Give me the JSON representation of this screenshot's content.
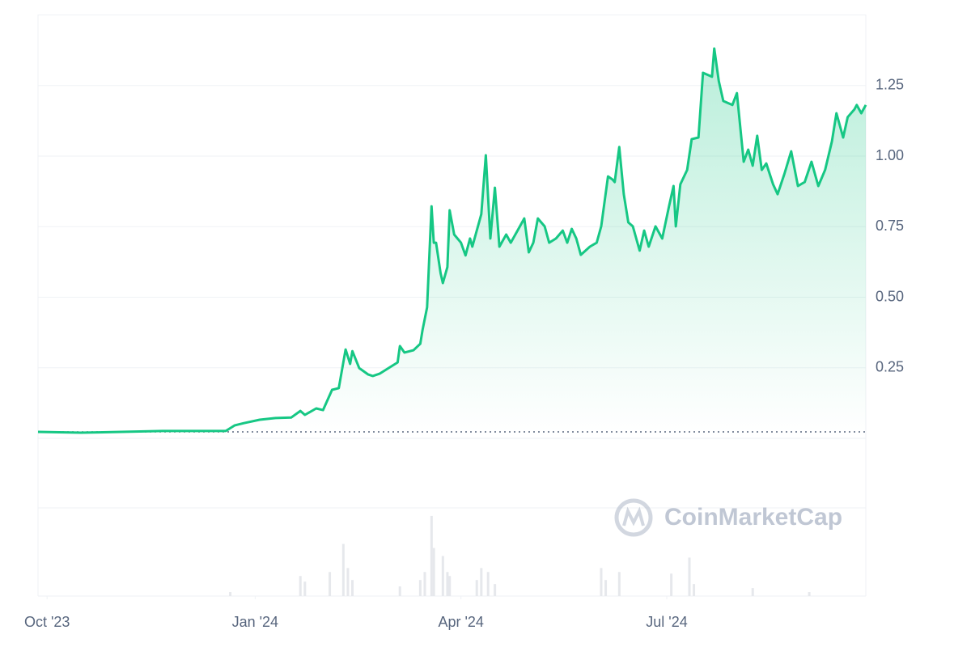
{
  "chart_data": {
    "type": "line",
    "watermark": "CoinMarketCap",
    "xlim": [
      0,
      366
    ],
    "xticks": [
      {
        "value": 4,
        "label": "Oct '23"
      },
      {
        "value": 96,
        "label": "Jan '24"
      },
      {
        "value": 187,
        "label": "Apr '24"
      },
      {
        "value": 278,
        "label": "Jul '24"
      }
    ],
    "ylim": [
      0,
      1.5
    ],
    "yticks": [
      {
        "value": 0.25,
        "label": "0.25"
      },
      {
        "value": 0.5,
        "label": "0.50"
      },
      {
        "value": 0.75,
        "label": "0.75"
      },
      {
        "value": 1,
        "label": "1.00"
      },
      {
        "value": 1.25,
        "label": "1.25"
      }
    ],
    "grid": true,
    "baseline": 0.023,
    "series": [
      {
        "color": "#16c784",
        "x": [
          0,
          19,
          37,
          55,
          73,
          83,
          87,
          91,
          98,
          105,
          112,
          116,
          118,
          123,
          126,
          130,
          133,
          136,
          138,
          139,
          142,
          146,
          148,
          151,
          155,
          159,
          160,
          162,
          166,
          169,
          170,
          172,
          174,
          175,
          176,
          178,
          179,
          181,
          182,
          184,
          187,
          189,
          191,
          192,
          194,
          196,
          198,
          200,
          202,
          204,
          207,
          209,
          212,
          215,
          217,
          219,
          221,
          224,
          226,
          229,
          232,
          234,
          236,
          238,
          240,
          244,
          247,
          249,
          252,
          254,
          255,
          257,
          259,
          261,
          263,
          266,
          268,
          270,
          273,
          276,
          279,
          281,
          282,
          284,
          287,
          289,
          292,
          294,
          298,
          299,
          301,
          303,
          307,
          309,
          312,
          314,
          316,
          318,
          320,
          322,
          325,
          327,
          330,
          333,
          336,
          339,
          342,
          345,
          348,
          351,
          353,
          356,
          358,
          361,
          362,
          364,
          366
        ],
        "values": [
          0.023,
          0.02,
          0.023,
          0.026,
          0.026,
          0.026,
          0.046,
          0.054,
          0.066,
          0.072,
          0.074,
          0.097,
          0.083,
          0.106,
          0.1,
          0.172,
          0.178,
          0.315,
          0.264,
          0.309,
          0.249,
          0.226,
          0.221,
          0.229,
          0.249,
          0.269,
          0.327,
          0.304,
          0.312,
          0.335,
          0.384,
          0.464,
          0.822,
          0.693,
          0.693,
          0.585,
          0.55,
          0.607,
          0.808,
          0.722,
          0.693,
          0.648,
          0.708,
          0.679,
          0.736,
          0.794,
          1.003,
          0.708,
          0.888,
          0.679,
          0.722,
          0.693,
          0.736,
          0.779,
          0.659,
          0.693,
          0.779,
          0.751,
          0.693,
          0.708,
          0.736,
          0.693,
          0.742,
          0.708,
          0.65,
          0.679,
          0.693,
          0.751,
          0.928,
          0.917,
          0.908,
          1.032,
          0.865,
          0.765,
          0.751,
          0.665,
          0.736,
          0.679,
          0.751,
          0.708,
          0.822,
          0.894,
          0.751,
          0.9,
          0.951,
          1.06,
          1.066,
          1.295,
          1.281,
          1.381,
          1.266,
          1.195,
          1.181,
          1.223,
          0.98,
          1.023,
          0.966,
          1.072,
          0.951,
          0.974,
          0.9,
          0.865,
          0.937,
          1.017,
          0.894,
          0.908,
          0.98,
          0.894,
          0.951,
          1.052,
          1.152,
          1.066,
          1.138,
          1.166,
          1.181,
          1.152,
          1.181
        ]
      }
    ],
    "volume": {
      "color": "#e6e8ec",
      "ylim": [
        0,
        110
      ],
      "x": [
        85,
        116,
        118,
        129,
        135,
        137,
        139,
        160,
        169,
        171,
        174,
        175,
        179,
        181,
        182,
        194,
        196,
        199,
        202,
        249,
        251,
        257,
        280,
        288,
        290,
        316,
        341
      ],
      "values": [
        5,
        25,
        18,
        30,
        65,
        35,
        20,
        12,
        20,
        30,
        100,
        60,
        50,
        30,
        25,
        20,
        35,
        30,
        15,
        35,
        20,
        30,
        28,
        48,
        15,
        10,
        5
      ]
    }
  }
}
